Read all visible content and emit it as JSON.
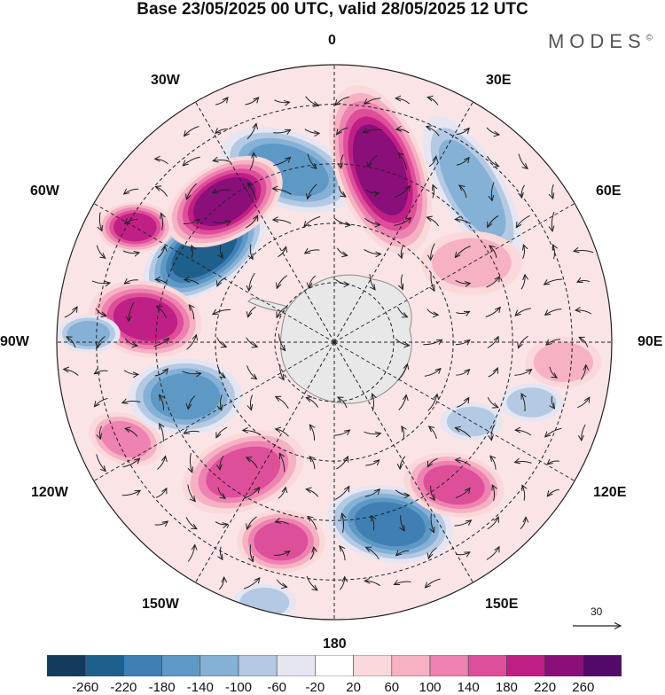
{
  "title": "Base 23/05/2025 00 UTC, valid 28/05/2025 12 UTC",
  "brand": "MODES",
  "brand_mark": "©",
  "longitude_labels": {
    "top": "0",
    "top_right": "30E",
    "right_upper": "60E",
    "right": "90E",
    "right_lower": "120E",
    "bottom_right": "150E",
    "bottom": "180",
    "bottom_left": "150W",
    "left_lower": "120W",
    "left": "90W",
    "left_upper": "60W",
    "top_left": "30W"
  },
  "reference_vector_label": "30",
  "colorbar": {
    "tick_labels": [
      "-260",
      "-220",
      "-180",
      "-140",
      "-100",
      "-60",
      "-20",
      "20",
      "60",
      "100",
      "140",
      "180",
      "220",
      "260"
    ],
    "colors": [
      "#123a5c",
      "#1f5f8b",
      "#3f7fb3",
      "#5e99c6",
      "#86b1d6",
      "#b4c9e3",
      "#e5e6f1",
      "#ffffff",
      "#fbd9db",
      "#f6b1c2",
      "#ee82b1",
      "#de4f9a",
      "#c01f86",
      "#8b0f7a",
      "#53096a"
    ]
  },
  "colors": {
    "land": "#e8e8e8",
    "coast": "#8a8a8a",
    "grid": "#222222",
    "arrow": "#222222"
  },
  "anomaly_blobs": [
    {
      "color_index": 1,
      "center": [
        -55,
        40
      ],
      "major": 11,
      "minor": 6,
      "tilt": -35
    },
    {
      "color_index": 3,
      "center": [
        -15,
        45
      ],
      "major": 11,
      "minor": 6,
      "tilt": 20
    },
    {
      "color_index": 13,
      "center": [
        -38,
        45
      ],
      "major": 10,
      "minor": 6,
      "tilt": -30
    },
    {
      "color_index": 13,
      "center": [
        15,
        45
      ],
      "major": 14,
      "minor": 7,
      "tilt": 70
    },
    {
      "color_index": 12,
      "center": [
        -60,
        58
      ],
      "major": 6,
      "minor": 4,
      "tilt": 0
    },
    {
      "color_index": 12,
      "center": [
        -83,
        48
      ],
      "major": 9,
      "minor": 6,
      "tilt": 10
    },
    {
      "color_index": 4,
      "center": [
        42,
        52
      ],
      "major": 13,
      "minor": 5,
      "tilt": 60
    },
    {
      "color_index": 4,
      "center": [
        -88,
        62
      ],
      "major": 5,
      "minor": 3,
      "tilt": 0
    },
    {
      "color_index": 10,
      "center": [
        -115,
        58
      ],
      "major": 6,
      "minor": 4,
      "tilt": 20
    },
    {
      "color_index": 3,
      "center": [
        -110,
        40
      ],
      "major": 9,
      "minor": 6,
      "tilt": 0
    },
    {
      "color_index": 11,
      "center": [
        -145,
        40
      ],
      "major": 10,
      "minor": 6,
      "tilt": -20
    },
    {
      "color_index": 11,
      "center": [
        -165,
        52
      ],
      "major": 7,
      "minor": 5,
      "tilt": 0
    },
    {
      "color_index": 2,
      "center": [
        163,
        48
      ],
      "major": 10,
      "minor": 6,
      "tilt": 10
    },
    {
      "color_index": 11,
      "center": [
        140,
        47
      ],
      "major": 8,
      "minor": 5,
      "tilt": 10
    },
    {
      "color_index": 5,
      "center": [
        -165,
        68
      ],
      "major": 5,
      "minor": 3,
      "tilt": 0
    },
    {
      "color_index": 9,
      "center": [
        95,
        58
      ],
      "major": 6,
      "minor": 4,
      "tilt": 0
    },
    {
      "color_index": 5,
      "center": [
        107,
        52
      ],
      "major": 5,
      "minor": 3,
      "tilt": 0
    },
    {
      "color_index": 5,
      "center": [
        120,
        40
      ],
      "major": 5,
      "minor": 3,
      "tilt": 0
    },
    {
      "color_index": 9,
      "center": [
        60,
        40
      ],
      "major": 8,
      "minor": 5,
      "tilt": 0
    }
  ]
}
